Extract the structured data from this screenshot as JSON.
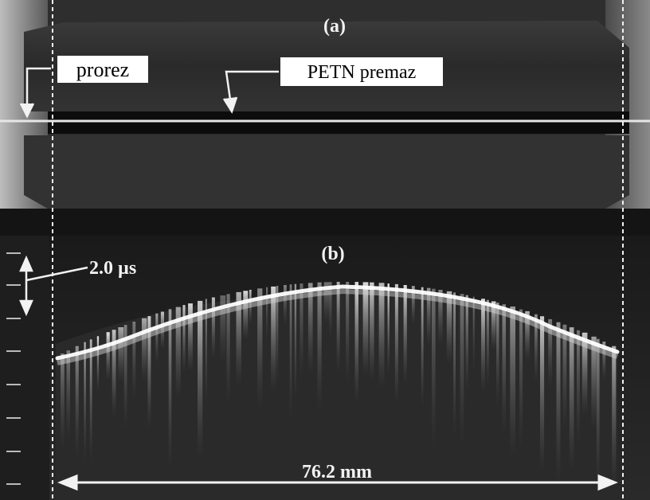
{
  "panel_a": {
    "tag": "(a)",
    "callout_slot": "prorez",
    "callout_coating": "PETN premaz"
  },
  "panel_b": {
    "tag": "(b)",
    "time_scale": "2.0 µs",
    "width_scale": "76.2 mm"
  },
  "colors": {
    "label_box": "#ffffff",
    "label_text": "#000000",
    "overlay_line": "#e6e6e6",
    "annotation_text": "#f2f2f2",
    "emission": "#ffffff"
  }
}
